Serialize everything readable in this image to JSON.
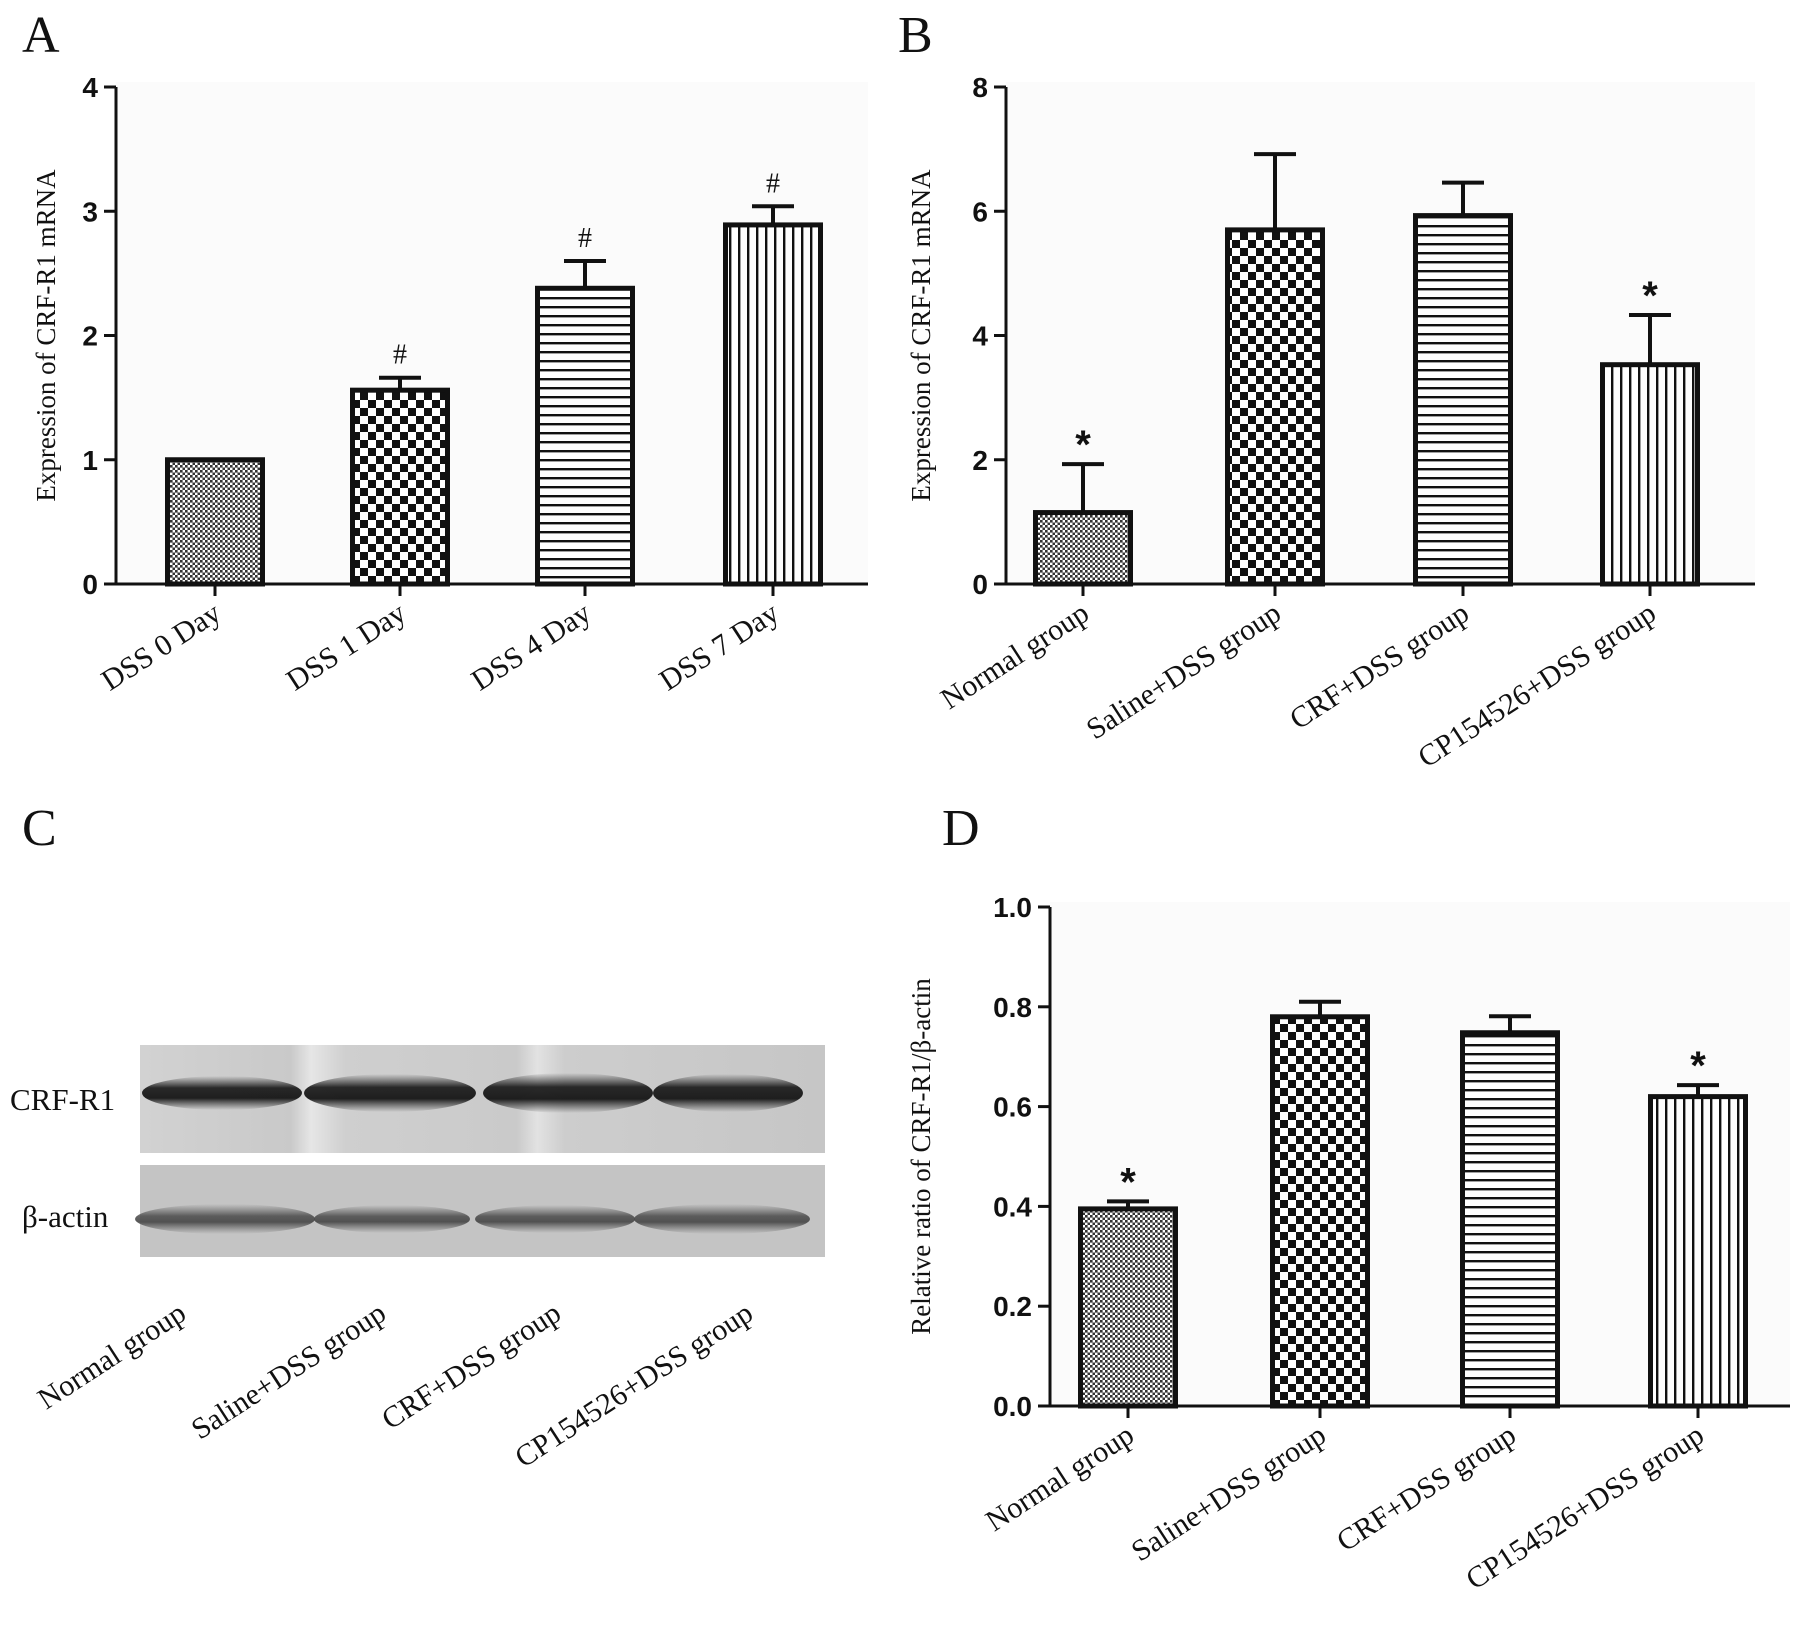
{
  "panels": {
    "A": "A",
    "B": "B",
    "C": "C",
    "D": "D"
  },
  "chart_data": [
    {
      "id": "A",
      "type": "bar",
      "ylabel": "Expression of CRF-R1 mRNA",
      "ylim": [
        0,
        4
      ],
      "yticks": [
        "0",
        "1",
        "2",
        "3",
        "4"
      ],
      "categories": [
        "DSS 0 Day",
        "DSS 1 Day",
        "DSS 4 Day",
        "DSS 7 Day"
      ],
      "values": [
        1.0,
        1.56,
        2.38,
        2.89
      ],
      "errors": [
        0,
        0.1,
        0.22,
        0.15
      ],
      "significance": [
        "",
        "#",
        "#",
        "#"
      ],
      "patterns": [
        "fine-dots",
        "checker",
        "horizontal",
        "vertical"
      ]
    },
    {
      "id": "B",
      "type": "bar",
      "ylabel": "Expression of CRF-R1 mRNA",
      "ylim": [
        0,
        8
      ],
      "yticks": [
        "0",
        "2",
        "4",
        "6",
        "8"
      ],
      "categories": [
        "Normal group",
        "Saline+DSS group",
        "CRF+DSS group",
        "CP154526+DSS group"
      ],
      "values": [
        1.15,
        5.7,
        5.93,
        3.53
      ],
      "errors": [
        0.78,
        1.22,
        0.53,
        0.8
      ],
      "significance": [
        "*",
        "",
        "",
        "*"
      ],
      "patterns": [
        "fine-dots",
        "checker",
        "horizontal",
        "vertical"
      ]
    },
    {
      "id": "D",
      "type": "bar",
      "ylabel": "Relative ratio of CRF-R1/β-actin",
      "ylim": [
        0,
        1.0
      ],
      "yticks": [
        "0.0",
        "0.2",
        "0.4",
        "0.6",
        "0.8",
        "1.0"
      ],
      "categories": [
        "Normal group",
        "Saline+DSS group",
        "CRF+DSS group",
        "CP154526+DSS group"
      ],
      "values": [
        0.395,
        0.78,
        0.748,
        0.62
      ],
      "errors": [
        0.015,
        0.03,
        0.033,
        0.023
      ],
      "significance": [
        "*",
        "",
        "",
        "*"
      ],
      "patterns": [
        "fine-dots",
        "checker",
        "horizontal",
        "vertical"
      ]
    }
  ],
  "blot": {
    "bands": [
      "CRF-R1",
      "β-actin"
    ],
    "lanes": [
      "Normal group",
      "Saline+DSS group",
      "CRF+DSS group",
      "CP154526+DSS group"
    ]
  }
}
